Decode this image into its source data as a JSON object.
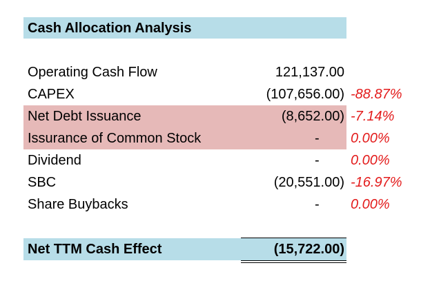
{
  "title": "Cash Allocation Analysis",
  "rows": [
    {
      "label": "Operating Cash Flow",
      "value": "121,137.00",
      "pct": ""
    },
    {
      "label": "CAPEX",
      "value": "(107,656.00)",
      "pct": "-88.87%"
    },
    {
      "label": "Net Debt Issuance",
      "value": "(8,652.00)",
      "pct": "-7.14%"
    },
    {
      "label": "Issurance of Common Stock",
      "value": "-",
      "pct": "0.00%"
    },
    {
      "label": "Dividend",
      "value": "-",
      "pct": "0.00%"
    },
    {
      "label": "SBC",
      "value": "(20,551.00)",
      "pct": "-16.97%"
    },
    {
      "label": "Share Buybacks",
      "value": "-",
      "pct": "0.00%"
    }
  ],
  "total": {
    "label": "Net TTM Cash Effect",
    "value": "(15,722.00)"
  },
  "colors": {
    "header_fill": "#b7dde8",
    "highlight_fill": "#e6b9b8",
    "negative_pct_text": "#e31b1b"
  }
}
